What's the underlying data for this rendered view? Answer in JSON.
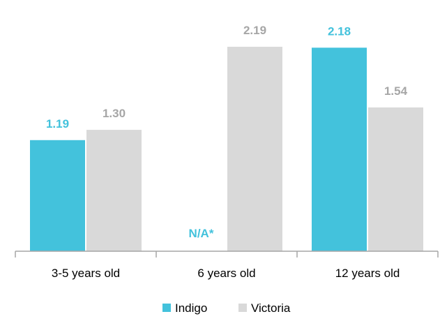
{
  "chart_data": {
    "type": "bar",
    "categories": [
      "3-5 years old",
      "6 years old",
      "12 years old"
    ],
    "series": [
      {
        "name": "Indigo",
        "color": "#43c2dc",
        "values": [
          1.19,
          null,
          2.18
        ],
        "labels": [
          "1.19",
          "N/A*",
          "2.18"
        ]
      },
      {
        "name": "Victoria",
        "color": "#d9d9d9",
        "label_color": "#a6a6a6",
        "values": [
          1.3,
          2.19,
          1.54
        ],
        "labels": [
          "1.30",
          "2.19",
          "1.54"
        ]
      }
    ],
    "ylim": [
      0,
      2.5
    ],
    "grid": false,
    "legend": "bottom"
  }
}
